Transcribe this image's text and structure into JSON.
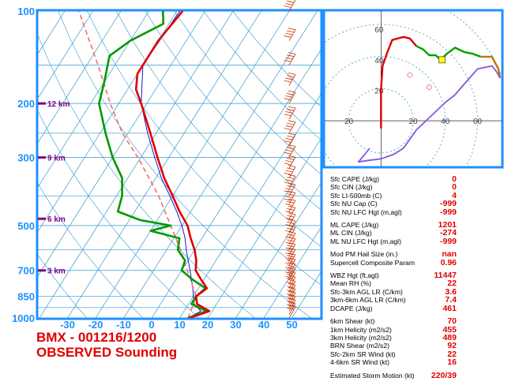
{
  "title": {
    "line1": "BMX - 001216/1200",
    "line2": "OBSERVED Sounding"
  },
  "chart_data": [
    {
      "type": "line",
      "subtype": "skew-T log-P",
      "pressure_ticks": [
        "100",
        "200",
        "300",
        "500",
        "700",
        "850",
        "1000"
      ],
      "pressure_values": [
        100,
        200,
        300,
        500,
        700,
        850,
        1000
      ],
      "height_labels": [
        "12 km",
        "9 km",
        "6 km",
        "3 km"
      ],
      "height_pressures": [
        200,
        300,
        475,
        700
      ],
      "temperature_ticks": [
        "-30",
        "-20",
        "-10",
        "0",
        "10",
        "20",
        "30",
        "40",
        "50"
      ],
      "temperature_values": [
        -30,
        -20,
        -10,
        0,
        10,
        20,
        30,
        40,
        50
      ],
      "ylim": [
        1000,
        100
      ],
      "xlim": [
        -40,
        58
      ],
      "series": [
        {
          "color": "#e00000",
          "points": [
            [
              1000,
              13.5
            ],
            [
              950,
              19
            ],
            [
              900,
              13
            ],
            [
              850,
              11
            ],
            [
              800,
              13
            ],
            [
              750,
              9
            ],
            [
              700,
              5
            ],
            [
              650,
              3
            ],
            [
              600,
              0
            ],
            [
              550,
              -4
            ],
            [
              500,
              -8
            ],
            [
              450,
              -14
            ],
            [
              400,
              -20
            ],
            [
              350,
              -27
            ],
            [
              300,
              -34
            ],
            [
              250,
              -42
            ],
            [
              200,
              -52
            ],
            [
              180,
              -57
            ],
            [
              160,
              -60
            ],
            [
              140,
              -60
            ],
            [
              125,
              -60
            ],
            [
              100,
              -58
            ]
          ]
        },
        {
          "color": "#009900",
          "points": [
            [
              1000,
              13
            ],
            [
              950,
              18
            ],
            [
              900,
              11
            ],
            [
              850,
              11
            ],
            [
              800,
              12.5
            ],
            [
              750,
              6
            ],
            [
              700,
              0
            ],
            [
              650,
              -1
            ],
            [
              600,
              -6
            ],
            [
              550,
              -8
            ],
            [
              520,
              -20
            ],
            [
              500,
              -14
            ],
            [
              480,
              -26
            ],
            [
              450,
              -36
            ],
            [
              400,
              -38
            ],
            [
              350,
              -42
            ],
            [
              300,
              -50
            ],
            [
              250,
              -58
            ],
            [
              200,
              -67
            ],
            [
              170,
              -70
            ],
            [
              140,
              -74
            ],
            [
              125,
              -70
            ],
            [
              110,
              -62
            ],
            [
              100,
              -65
            ]
          ]
        },
        {
          "color": "#0000cc",
          "points": [
            [
              1000,
              13
            ],
            [
              950,
              16
            ],
            [
              900,
              12
            ],
            [
              850,
              10
            ],
            [
              800,
              8
            ],
            [
              700,
              3
            ],
            [
              600,
              -3
            ],
            [
              550,
              -6
            ],
            [
              500,
              -10
            ],
            [
              450,
              -15
            ],
            [
              400,
              -21
            ],
            [
              350,
              -28
            ],
            [
              300,
              -35
            ],
            [
              250,
              -43
            ],
            [
              200,
              -52
            ],
            [
              150,
              -60
            ],
            [
              100,
              -59
            ]
          ]
        },
        {
          "color": "#ff6666",
          "points": [
            [
              1000,
              13
            ],
            [
              850,
              11
            ],
            [
              700,
              2
            ],
            [
              600,
              -5
            ],
            [
              500,
              -14
            ],
            [
              400,
              -25
            ],
            [
              300,
              -41
            ],
            [
              250,
              -52
            ],
            [
              200,
              -63
            ],
            [
              150,
              -76
            ],
            [
              100,
              -95
            ]
          ]
        }
      ]
    },
    {
      "type": "line",
      "subtype": "hodograph",
      "ring_labels": [
        "20",
        "40",
        "60"
      ],
      "ring_values": [
        20,
        40,
        60
      ],
      "x_ticks": [
        "20",
        "20",
        "40",
        "60"
      ],
      "x_tick_values": [
        -20,
        20,
        40,
        60
      ],
      "xlim": [
        -35,
        75
      ],
      "ylim": [
        -30,
        72
      ],
      "storm_motion": [
        38,
        40
      ],
      "series": [
        {
          "color": "#e00000",
          "points": [
            [
              0,
              -5
            ],
            [
              0,
              20
            ],
            [
              1,
              36
            ],
            [
              4,
              45
            ],
            [
              7,
              53
            ],
            [
              14,
              55
            ],
            [
              18,
              54
            ],
            [
              22,
              49
            ]
          ]
        },
        {
          "color": "#00a000",
          "points": [
            [
              22,
              49
            ],
            [
              26,
              47
            ],
            [
              30,
              43
            ],
            [
              34,
              43
            ],
            [
              37,
              40
            ],
            [
              41,
              44
            ],
            [
              46,
              48
            ],
            [
              52,
              45
            ],
            [
              57,
              44
            ],
            [
              62,
              42
            ]
          ]
        },
        {
          "color": "#c07800",
          "points": [
            [
              62,
              42
            ],
            [
              69,
              42
            ],
            [
              73,
              34
            ],
            [
              74,
              28
            ]
          ]
        },
        {
          "color": "#8855dd",
          "points": [
            [
              74,
              28
            ],
            [
              72,
              32
            ],
            [
              69,
              36
            ],
            [
              60,
              34
            ],
            [
              55,
              28
            ],
            [
              50,
              22
            ],
            [
              46,
              17
            ],
            [
              40,
              12
            ],
            [
              34,
              6
            ],
            [
              28,
              0
            ],
            [
              22,
              -6
            ],
            [
              18,
              -12
            ],
            [
              14,
              -18
            ],
            [
              8,
              -22
            ],
            [
              0,
              -25
            ],
            [
              -8,
              -26
            ],
            [
              -14,
              -27
            ],
            [
              -10,
              -22
            ],
            [
              -7,
              -18
            ]
          ]
        }
      ]
    }
  ],
  "params": [
    {
      "label": "Sfc CAPE (J/kg)",
      "value": "0"
    },
    {
      "label": "Sfc CIN (J/kg)",
      "value": "0"
    },
    {
      "label": "Sfc LI-500mb (C)",
      "value": "4"
    },
    {
      "label": "Sfc NU Cap (C)",
      "value": "-999"
    },
    {
      "label": "Sfc NU LFC Hgt (m,agl)",
      "value": "-999"
    },
    {
      "label": "ML CAPE (J/kg)",
      "value": "1201"
    },
    {
      "label": "ML CIN (J/kg)",
      "value": "-274"
    },
    {
      "label": "ML NU LFC Hgt (m,agl)",
      "value": "-999"
    },
    {
      "label": "Mod PM Hail Size (in.)",
      "value": "nan"
    },
    {
      "label": "Supercell Composite Param",
      "value": "0.96"
    },
    {
      "label": "WBZ Hgt (ft,agl)",
      "value": "11447"
    },
    {
      "label": "Mean RH (%)",
      "value": "22"
    },
    {
      "label": "Sfc-3km AGL LR (C/km)",
      "value": "3.6"
    },
    {
      "label": "3km-6km AGL LR (C/km)",
      "value": "7.4"
    },
    {
      "label": "DCAPE (J/kg)",
      "value": "461"
    },
    {
      "label": "6km Shear (kt)",
      "value": "70"
    },
    {
      "label": "1km Helicity (m2/s2)",
      "value": "455"
    },
    {
      "label": "3km Helicity (m2/s2)",
      "value": "489"
    },
    {
      "label": "BRN Shear (m2/s2)",
      "value": "92"
    },
    {
      "label": "Sfc-2km SR Wind (kt)",
      "value": "22"
    },
    {
      "label": "4-6km SR Wind (kt)",
      "value": "16"
    },
    {
      "label": "Estimated Storm Motion (kt)",
      "value": "220/39"
    }
  ],
  "colors": {
    "frame": "#1e90ff",
    "grid": "#3399cc",
    "temperature": "#e00000",
    "dewpoint": "#009900",
    "virtual": "#0000cc",
    "parcel": "#ff6666",
    "hodo_red": "#e00000",
    "hodo_green": "#00a000",
    "hodo_orange": "#c07800",
    "hodo_purple": "#8855dd",
    "storm_marker": "#ffff00",
    "height_marker": "#800080"
  }
}
